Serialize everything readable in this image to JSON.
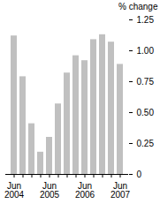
{
  "chart_data": {
    "type": "bar",
    "categories": [
      "Jun\n2004",
      null,
      null,
      null,
      "Jun\n2005",
      null,
      null,
      null,
      "Jun\n2006",
      null,
      null,
      null,
      "Jun\n2007"
    ],
    "values": [
      1.12,
      0.79,
      0.41,
      0.18,
      0.3,
      0.57,
      0.82,
      0.96,
      0.92,
      1.09,
      1.13,
      1.07,
      0.89
    ],
    "color": "#c0c0c0",
    "y_label": "% change",
    "ylim": [
      0,
      1.25
    ],
    "yticks": [
      0,
      0.25,
      {
        "value": 0.5,
        "label": "0.50"
      },
      0.75,
      {
        "value": 1,
        "label": "1.00"
      },
      1.25
    ],
    "grid": false
  }
}
